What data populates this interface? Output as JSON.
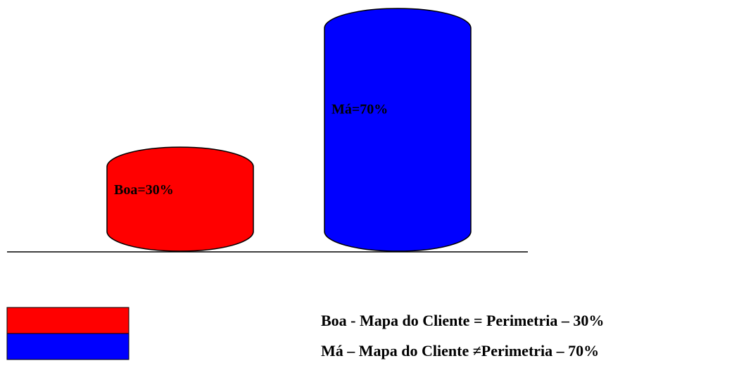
{
  "chart_data": {
    "type": "bar",
    "categories": [
      "Boa",
      "Má"
    ],
    "values": [
      30,
      70
    ],
    "value_labels": [
      "Boa=30%",
      "Má=70%"
    ],
    "colors": [
      "#ff0000",
      "#0000ff"
    ],
    "legend": [
      "Boa - Mapa do Cliente = Perimetria – 30%",
      "Má – Mapa do Cliente ≠Perimetria – 70%"
    ]
  }
}
